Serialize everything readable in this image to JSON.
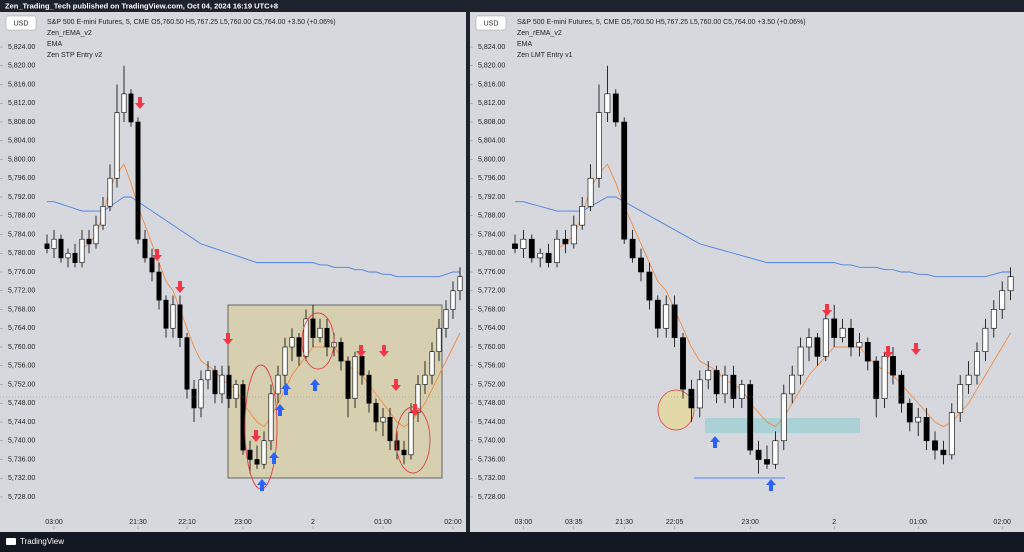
{
  "header": {
    "text": "Zen_Trading_Tech published on TradingView.com, Oct 04, 2024 16:19 UTC+8"
  },
  "footer": {
    "brand": "TradingView"
  },
  "chart_data": [
    {
      "type": "candlestick",
      "currency": "USD",
      "title": "S&P 500 E-mini Futures, 5, CME  O5,760.50  H5,767.25  L5,760.00  C5,764.00  +3.50 (+0.06%)",
      "entry_indicator": "Zen STP Entry v2",
      "ylim": [
        5724,
        5832
      ],
      "yticks": [
        {
          "value": 5824,
          "label": "5,824.00"
        },
        {
          "value": 5820,
          "label": "5,820.00"
        },
        {
          "value": 5816,
          "label": "5,816.00"
        },
        {
          "value": 5812,
          "label": "5,812.00"
        },
        {
          "value": 5808,
          "label": "5,808.00"
        },
        {
          "value": 5804,
          "label": "5,804.00"
        },
        {
          "value": 5800,
          "label": "5,800.00"
        },
        {
          "value": 5796,
          "label": "5,796.00"
        },
        {
          "value": 5792,
          "label": "5,792.00"
        },
        {
          "value": 5788,
          "label": "5,788.00"
        },
        {
          "value": 5784,
          "label": "5,784.00"
        },
        {
          "value": 5780,
          "label": "5,780.00"
        },
        {
          "value": 5776,
          "label": "5,776.00"
        },
        {
          "value": 5772,
          "label": "5,772.00"
        },
        {
          "value": 5768,
          "label": "5,768.00"
        },
        {
          "value": 5764,
          "label": "5,764.00"
        },
        {
          "value": 5760,
          "label": "5,760.00"
        },
        {
          "value": 5756,
          "label": "5,756.00"
        },
        {
          "value": 5752,
          "label": "5,752.00"
        },
        {
          "value": 5748,
          "label": "5,748.00"
        },
        {
          "value": 5744,
          "label": "5,744.00"
        },
        {
          "value": 5740,
          "label": "5,740.00"
        },
        {
          "value": 5736,
          "label": "5,736.00"
        },
        {
          "value": 5732,
          "label": "5,732.00"
        },
        {
          "value": 5728,
          "label": "5,728.00"
        }
      ],
      "xticks": [
        {
          "value": 1,
          "label": "03:00"
        },
        {
          "value": 13,
          "label": "21:30"
        },
        {
          "value": 20,
          "label": "22:10"
        },
        {
          "value": 28,
          "label": "23:00"
        },
        {
          "value": 38,
          "label": "2"
        },
        {
          "value": 48,
          "label": "01:00"
        },
        {
          "value": 58,
          "label": "02:00"
        }
      ],
      "up_color": "#ffffff",
      "down_color": "#000000",
      "open": [
        5782,
        5781,
        5783,
        5779,
        5780,
        5778,
        5783,
        5782,
        5786,
        5790,
        5796,
        5810,
        5814,
        5808,
        5783,
        5779,
        5776,
        5770,
        5764,
        5769,
        5762,
        5751,
        5747,
        5753,
        5755,
        5750,
        5754,
        5749,
        5752,
        5738,
        5736,
        5735,
        5740,
        5750,
        5754,
        5760,
        5762,
        5758,
        5766,
        5762,
        5764,
        5760,
        5761,
        5757,
        5749,
        5758,
        5754,
        5748,
        5744,
        5745,
        5740,
        5738,
        5737,
        5746,
        5752,
        5754,
        5759,
        5764,
        5768,
        5772
      ],
      "high": [
        5784,
        5785,
        5784,
        5781,
        5782,
        5785,
        5785,
        5788,
        5792,
        5799,
        5816,
        5820,
        5815,
        5809,
        5785,
        5781,
        5778,
        5771,
        5771,
        5771,
        5763,
        5753,
        5755,
        5757,
        5756,
        5756,
        5756,
        5753,
        5753,
        5740,
        5739,
        5742,
        5752,
        5756,
        5762,
        5764,
        5763,
        5768,
        5769,
        5766,
        5766,
        5763,
        5762,
        5758,
        5759,
        5760,
        5755,
        5749,
        5747,
        5747,
        5742,
        5740,
        5748,
        5754,
        5757,
        5761,
        5766,
        5770,
        5774,
        5777
      ],
      "low": [
        5780,
        5779,
        5778,
        5777,
        5777,
        5777,
        5780,
        5781,
        5785,
        5789,
        5794,
        5808,
        5807,
        5782,
        5778,
        5774,
        5768,
        5762,
        5762,
        5760,
        5749,
        5744,
        5745,
        5751,
        5748,
        5748,
        5747,
        5747,
        5737,
        5733,
        5734,
        5734,
        5738,
        5748,
        5752,
        5757,
        5756,
        5757,
        5760,
        5761,
        5758,
        5758,
        5755,
        5745,
        5747,
        5752,
        5746,
        5742,
        5741,
        5738,
        5736,
        5735,
        5736,
        5744,
        5750,
        5752,
        5757,
        5762,
        5766,
        5770
      ],
      "close": [
        5781,
        5783,
        5779,
        5780,
        5778,
        5783,
        5782,
        5786,
        5790,
        5796,
        5810,
        5814,
        5808,
        5783,
        5779,
        5776,
        5770,
        5764,
        5769,
        5762,
        5751,
        5747,
        5753,
        5755,
        5750,
        5754,
        5749,
        5752,
        5738,
        5736,
        5735,
        5740,
        5750,
        5754,
        5760,
        5762,
        5758,
        5766,
        5762,
        5764,
        5760,
        5761,
        5757,
        5749,
        5758,
        5754,
        5748,
        5744,
        5745,
        5740,
        5738,
        5737,
        5746,
        5752,
        5754,
        5759,
        5764,
        5768,
        5772,
        5775
      ],
      "series": [
        {
          "name": "Zen_rEMA_v2",
          "color": "#f08a40",
          "values": [
            null,
            null,
            null,
            null,
            null,
            5781,
            5782,
            5784,
            5788,
            5794,
            5797,
            5799,
            5795,
            5790,
            5786,
            5782,
            5778,
            5774,
            5772,
            5768,
            5764,
            5760,
            5757,
            5756,
            5755,
            5753,
            5752,
            5751,
            5748,
            5746,
            5744,
            5743,
            5745,
            5748,
            5751,
            5754,
            5756,
            5758,
            5760,
            5760,
            5760,
            5760,
            5758,
            5756,
            5755,
            5754,
            5752,
            5750,
            5748,
            5746,
            5744,
            5743,
            5744,
            5746,
            5748,
            5751,
            5754,
            5757,
            5760,
            5763
          ]
        },
        {
          "name": "EMA",
          "color": "#4a7fe0",
          "values": [
            5791,
            5791,
            5790.5,
            5790,
            5789.5,
            5789,
            5789,
            5789,
            5789,
            5790,
            5791,
            5792,
            5792,
            5791,
            5790,
            5789,
            5788,
            5787,
            5786,
            5785,
            5784,
            5783,
            5782,
            5781.5,
            5781,
            5780.5,
            5780,
            5779.5,
            5779,
            5778.5,
            5778,
            5778,
            5778,
            5778,
            5778,
            5778,
            5778,
            5778,
            5778,
            5777.5,
            5777.5,
            5777,
            5777,
            5777,
            5776.5,
            5776.5,
            5776,
            5776,
            5775.5,
            5775.5,
            5775,
            5775,
            5775,
            5775,
            5775,
            5775,
            5775,
            5775.5,
            5776,
            5776
          ]
        }
      ]
    },
    {
      "type": "candlestick",
      "currency": "USD",
      "title": "S&P 500 E-mini Futures, 5, CME  O5,760.50  H5,767.25  L5,760.00  C5,764.00  +3.50 (+0.06%)",
      "entry_indicator": "Zen LMT Entry v1",
      "ylim": [
        5724,
        5832
      ],
      "yticks": [
        {
          "value": 5824,
          "label": "5,824.00"
        },
        {
          "value": 5820,
          "label": "5,820.00"
        },
        {
          "value": 5816,
          "label": "5,816.00"
        },
        {
          "value": 5812,
          "label": "5,812.00"
        },
        {
          "value": 5808,
          "label": "5,808.00"
        },
        {
          "value": 5804,
          "label": "5,804.00"
        },
        {
          "value": 5800,
          "label": "5,800.00"
        },
        {
          "value": 5796,
          "label": "5,796.00"
        },
        {
          "value": 5792,
          "label": "5,792.00"
        },
        {
          "value": 5788,
          "label": "5,788.00"
        },
        {
          "value": 5784,
          "label": "5,784.00"
        },
        {
          "value": 5780,
          "label": "5,780.00"
        },
        {
          "value": 5776,
          "label": "5,776.00"
        },
        {
          "value": 5772,
          "label": "5,772.00"
        },
        {
          "value": 5768,
          "label": "5,768.00"
        },
        {
          "value": 5764,
          "label": "5,764.00"
        },
        {
          "value": 5760,
          "label": "5,760.00"
        },
        {
          "value": 5756,
          "label": "5,756.00"
        },
        {
          "value": 5752,
          "label": "5,752.00"
        },
        {
          "value": 5748,
          "label": "5,748.00"
        },
        {
          "value": 5744,
          "label": "5,744.00"
        },
        {
          "value": 5740,
          "label": "5,740.00"
        },
        {
          "value": 5736,
          "label": "5,736.00"
        },
        {
          "value": 5732,
          "label": "5,732.00"
        },
        {
          "value": 5728,
          "label": "5,728.00"
        }
      ],
      "xticks": [
        {
          "value": 1,
          "label": "03:00"
        },
        {
          "value": 7,
          "label": "03:35"
        },
        {
          "value": 13,
          "label": "21:30"
        },
        {
          "value": 19,
          "label": "22:05"
        },
        {
          "value": 28,
          "label": "23:00"
        },
        {
          "value": 38,
          "label": "2"
        },
        {
          "value": 48,
          "label": "01:00"
        },
        {
          "value": 58,
          "label": "02:00"
        }
      ],
      "up_color": "#ffffff",
      "down_color": "#000000",
      "open": [
        5782,
        5781,
        5783,
        5779,
        5780,
        5778,
        5783,
        5782,
        5786,
        5790,
        5796,
        5810,
        5814,
        5808,
        5783,
        5779,
        5776,
        5770,
        5764,
        5769,
        5762,
        5751,
        5747,
        5753,
        5755,
        5750,
        5754,
        5749,
        5752,
        5738,
        5736,
        5735,
        5740,
        5750,
        5754,
        5760,
        5762,
        5758,
        5766,
        5762,
        5764,
        5760,
        5761,
        5757,
        5749,
        5758,
        5754,
        5748,
        5744,
        5745,
        5740,
        5738,
        5737,
        5746,
        5752,
        5754,
        5759,
        5764,
        5768,
        5772
      ],
      "high": [
        5784,
        5785,
        5784,
        5781,
        5782,
        5785,
        5785,
        5788,
        5792,
        5799,
        5816,
        5820,
        5815,
        5809,
        5785,
        5781,
        5778,
        5771,
        5771,
        5771,
        5763,
        5753,
        5755,
        5757,
        5756,
        5756,
        5756,
        5753,
        5753,
        5740,
        5739,
        5742,
        5752,
        5756,
        5762,
        5764,
        5763,
        5768,
        5769,
        5766,
        5766,
        5763,
        5762,
        5758,
        5759,
        5760,
        5755,
        5749,
        5747,
        5747,
        5742,
        5740,
        5748,
        5754,
        5757,
        5761,
        5766,
        5770,
        5774,
        5777
      ],
      "low": [
        5780,
        5779,
        5778,
        5777,
        5777,
        5777,
        5780,
        5781,
        5785,
        5789,
        5794,
        5808,
        5807,
        5782,
        5778,
        5774,
        5768,
        5762,
        5762,
        5760,
        5749,
        5744,
        5745,
        5751,
        5748,
        5748,
        5747,
        5747,
        5737,
        5733,
        5734,
        5734,
        5738,
        5748,
        5752,
        5757,
        5756,
        5757,
        5760,
        5761,
        5758,
        5758,
        5755,
        5745,
        5747,
        5752,
        5746,
        5742,
        5741,
        5738,
        5736,
        5735,
        5736,
        5744,
        5750,
        5752,
        5757,
        5762,
        5766,
        5770
      ],
      "close": [
        5781,
        5783,
        5779,
        5780,
        5778,
        5783,
        5782,
        5786,
        5790,
        5796,
        5810,
        5814,
        5808,
        5783,
        5779,
        5776,
        5770,
        5764,
        5769,
        5762,
        5751,
        5747,
        5753,
        5755,
        5750,
        5754,
        5749,
        5752,
        5738,
        5736,
        5735,
        5740,
        5750,
        5754,
        5760,
        5762,
        5758,
        5766,
        5762,
        5764,
        5760,
        5761,
        5757,
        5749,
        5758,
        5754,
        5748,
        5744,
        5745,
        5740,
        5738,
        5737,
        5746,
        5752,
        5754,
        5759,
        5764,
        5768,
        5772,
        5775
      ],
      "series": [
        {
          "name": "Zen_rEMA_v2",
          "color": "#f08a40",
          "values": [
            null,
            null,
            null,
            null,
            null,
            5781,
            5782,
            5784,
            5788,
            5794,
            5797,
            5799,
            5795,
            5790,
            5786,
            5782,
            5778,
            5774,
            5772,
            5768,
            5764,
            5760,
            5757,
            5756,
            5755,
            5753,
            5752,
            5751,
            5748,
            5746,
            5744,
            5743,
            5745,
            5748,
            5751,
            5754,
            5756,
            5758,
            5760,
            5760,
            5760,
            5760,
            5758,
            5756,
            5755,
            5754,
            5752,
            5750,
            5748,
            5746,
            5744,
            5743,
            5744,
            5746,
            5748,
            5751,
            5754,
            5757,
            5760,
            5763
          ]
        },
        {
          "name": "EMA",
          "color": "#4a7fe0",
          "values": [
            5791,
            5791,
            5790.5,
            5790,
            5789.5,
            5789,
            5789,
            5789,
            5789,
            5790,
            5791,
            5792,
            5792,
            5791,
            5790,
            5789,
            5788,
            5787,
            5786,
            5785,
            5784,
            5783,
            5782,
            5781.5,
            5781,
            5780.5,
            5780,
            5779.5,
            5779,
            5778.5,
            5778,
            5778,
            5778,
            5778,
            5778,
            5778,
            5778,
            5778,
            5778,
            5777.5,
            5777.5,
            5777,
            5777,
            5777,
            5776.5,
            5776.5,
            5776,
            5776,
            5775.5,
            5775.5,
            5775,
            5775,
            5775,
            5775,
            5775,
            5775,
            5775,
            5775.5,
            5776,
            5776
          ]
        }
      ]
    }
  ]
}
